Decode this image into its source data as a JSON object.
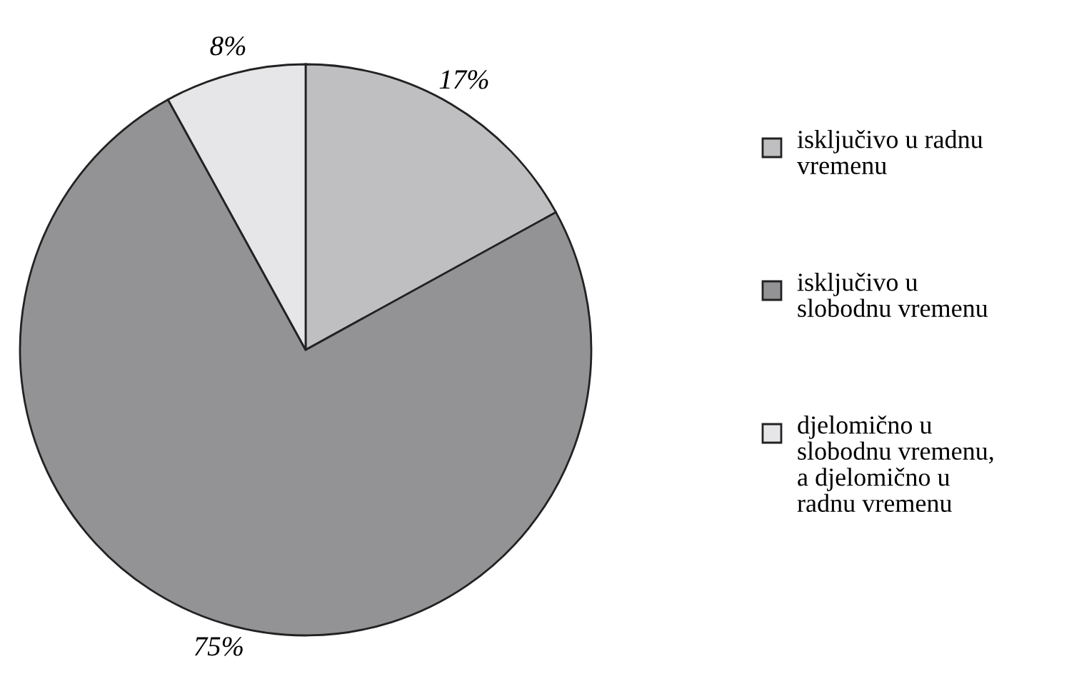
{
  "chart_data": {
    "type": "pie",
    "categories": [
      "isključivo u radnu\nvremenu",
      "isključivo u\nslobodnu vremenu",
      "djelomično u\nslobodnu vremenu,\na djelomično u\nradnu vremenu"
    ],
    "values": [
      17,
      75,
      8
    ],
    "colors": [
      "#bfbfc1",
      "#939395",
      "#e6e6e8"
    ],
    "value_labels": [
      "17%",
      "75%",
      "8%"
    ],
    "legend": "right"
  }
}
